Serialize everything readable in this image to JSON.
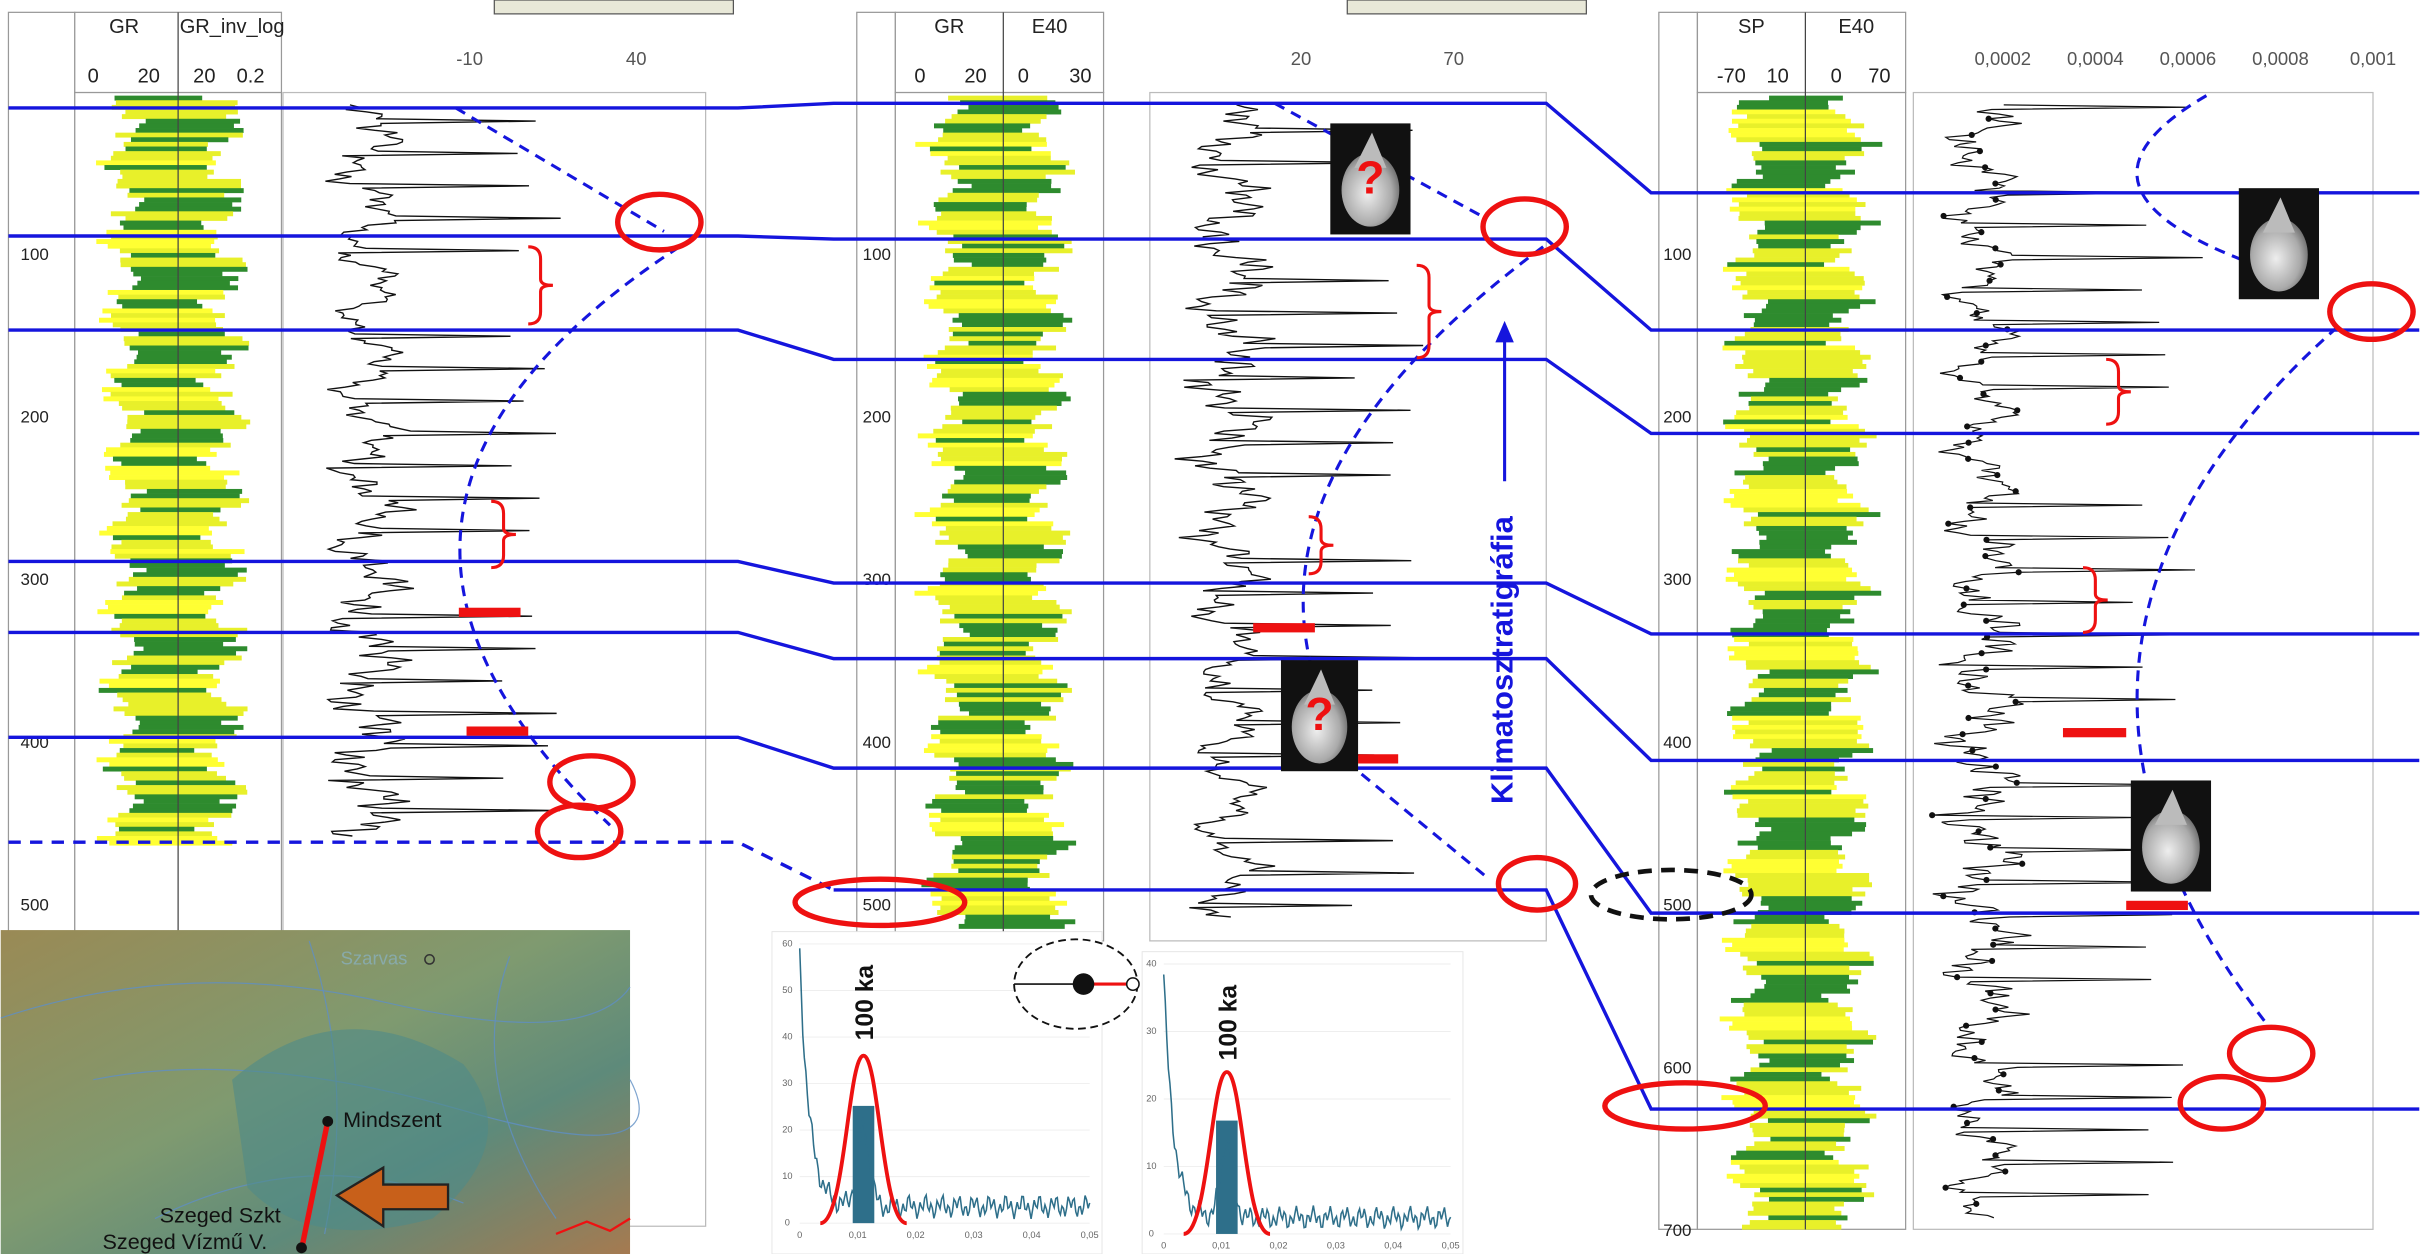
{
  "panels": [
    {
      "headers": [
        "GR",
        "GR_inv_log"
      ],
      "header_scales": [
        "0",
        "20",
        "20",
        "0.2"
      ],
      "depth_ticks": [
        100,
        200,
        300,
        400,
        500
      ],
      "curve_scale": [
        "-10",
        "40"
      ]
    },
    {
      "headers": [
        "GR",
        "E40"
      ],
      "header_scales": [
        "0",
        "20",
        "0",
        "30"
      ],
      "depth_ticks": [
        100,
        200,
        300,
        400,
        500
      ],
      "curve_scale": [
        "20",
        "70"
      ]
    },
    {
      "headers": [
        "SP",
        "E40"
      ],
      "header_scales": [
        "-70",
        "10",
        "0",
        "70"
      ],
      "depth_ticks": [
        100,
        200,
        300,
        400,
        500,
        600,
        700
      ],
      "curve_scale": [
        "0,0002",
        "0,0004",
        "0,0006",
        "0,0008",
        "0,001"
      ]
    }
  ],
  "annotation": "Klimatosztratigráfia",
  "fossil_marks": [
    "?",
    "?"
  ],
  "spectra": [
    {
      "label": "100 ka",
      "y_ticks": [
        "60",
        "50",
        "40",
        "30",
        "20",
        "10",
        "0"
      ],
      "x_ticks": [
        "0",
        "0,01",
        "0,02",
        "0,03",
        "0,04",
        "0,05"
      ]
    },
    {
      "label": "100 ka",
      "y_ticks": [
        "40",
        "30",
        "20",
        "10",
        "0"
      ],
      "x_ticks": [
        "0",
        "0,01",
        "0,02",
        "0,03",
        "0,04",
        "0,05"
      ]
    }
  ],
  "map": {
    "places": [
      "Szarvas",
      "Mindszent",
      "Szeged Szkt",
      "Szeged Vízmű V."
    ]
  }
}
